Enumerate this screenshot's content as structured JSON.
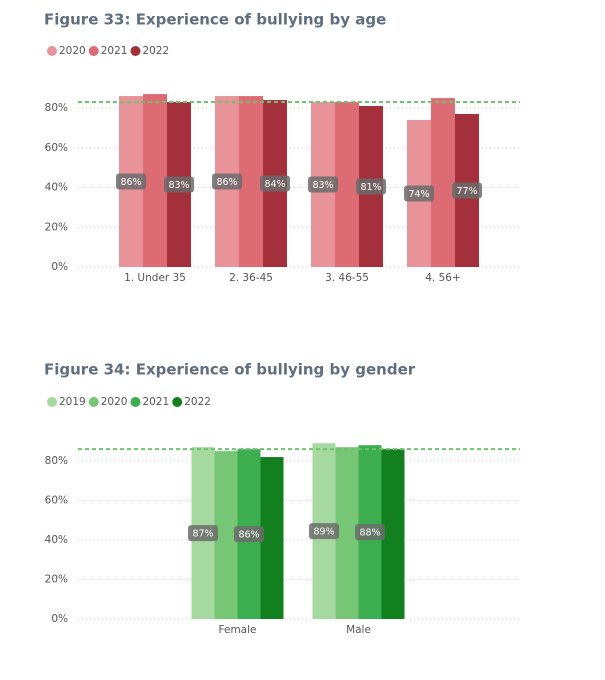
{
  "chart_data": [
    {
      "type": "bar",
      "title": "Figure 33: Experience of bullying by age",
      "categories": [
        "1. Under 35",
        "2. 36-45",
        "3. 46-55",
        "4. 56+"
      ],
      "series": [
        {
          "name": "2020",
          "color": "#e8939a",
          "values": [
            86,
            86,
            83,
            74
          ],
          "value_labels": [
            "86%",
            "86%",
            "83%",
            "74%"
          ]
        },
        {
          "name": "2021",
          "color": "#dc6b74",
          "values": [
            87,
            86,
            83,
            85
          ]
        },
        {
          "name": "2022",
          "color": "#a3303a",
          "values": [
            83,
            84,
            81,
            77
          ],
          "value_labels": [
            "83%",
            "84%",
            "81%",
            "77%"
          ]
        }
      ],
      "ylim": [
        0,
        90
      ],
      "yticks": [
        {
          "value": 0,
          "label": "0%"
        },
        {
          "value": 20,
          "label": "20%"
        },
        {
          "value": 40,
          "label": "40%"
        },
        {
          "value": 60,
          "label": "60%"
        },
        {
          "value": 80,
          "label": "80%"
        }
      ],
      "grid": true,
      "reference_line": 83,
      "reference_color": "#6cc46c"
    },
    {
      "type": "bar",
      "title": "Figure 34: Experience of bullying by gender",
      "categories": [
        "Female",
        "Male"
      ],
      "series": [
        {
          "name": "2019",
          "color": "#a6d9a0",
          "values": [
            87,
            89
          ],
          "value_labels": [
            "87%",
            "89%"
          ]
        },
        {
          "name": "2020",
          "color": "#76c676",
          "values": [
            85,
            87
          ]
        },
        {
          "name": "2021",
          "color": "#3dae50",
          "values": [
            86,
            88
          ],
          "value_labels": [
            "86%",
            "88%"
          ]
        },
        {
          "name": "2022",
          "color": "#12801e",
          "values": [
            82,
            86
          ]
        }
      ],
      "ylim": [
        0,
        90
      ],
      "yticks": [
        {
          "value": 0,
          "label": "0%"
        },
        {
          "value": 20,
          "label": "20%"
        },
        {
          "value": 40,
          "label": "40%"
        },
        {
          "value": 60,
          "label": "60%"
        },
        {
          "value": 80,
          "label": "80%"
        }
      ],
      "grid": true,
      "reference_line": 86,
      "reference_color": "#6cc46c"
    }
  ]
}
